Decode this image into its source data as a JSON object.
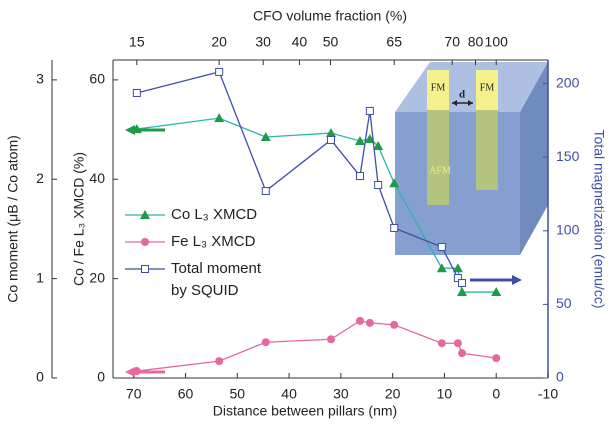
{
  "chart_data": {
    "type": "line",
    "xlabel": "Distance between pillars (nm)",
    "xlim": [
      74,
      -10
    ],
    "xticks": [
      70,
      60,
      50,
      40,
      30,
      20,
      10,
      0,
      -10
    ],
    "x2label": "CFO volume fraction (%)",
    "x2ticks": [
      {
        "value": 69.4,
        "label": "15"
      },
      {
        "value": 53.5,
        "label": "20"
      },
      {
        "value": 45,
        "label": "30"
      },
      {
        "value": 38,
        "label": "40"
      },
      {
        "value": 32,
        "label": "50"
      },
      {
        "value": 19.7,
        "label": "65"
      },
      {
        "value": 8.5,
        "label": "70"
      },
      {
        "value": 4,
        "label": "80"
      },
      {
        "value": 0,
        "label": "100"
      }
    ],
    "ylabel": "Co / Fe L₃ XMCD (%)",
    "ylim": [
      0,
      64
    ],
    "yticks": [
      0,
      20,
      40,
      60
    ],
    "y3label": "Co moment (μB / Co atom)",
    "y3lim": [
      0,
      3.2
    ],
    "y3ticks": [
      0,
      1,
      2,
      3
    ],
    "y2label": "Total magnetization (emu/cc)",
    "y2lim": [
      0,
      216
    ],
    "y2ticks": [
      0,
      50,
      100,
      150,
      200
    ],
    "y2color": "#3f4ea6",
    "legend": "upper left",
    "series": [
      {
        "name": "Co L₃ XMCD",
        "color": "#2bb5ad",
        "marker_color": "#1d9b47",
        "marker": "triangle",
        "x": [
          69.4,
          53.5,
          44.5,
          31.9,
          26.3,
          24.4,
          22.8,
          19.7,
          10.5,
          7.4,
          6.6,
          0
        ],
        "values": [
          50.1,
          52.3,
          48.5,
          49.3,
          47.7,
          48.1,
          46.7,
          39.2,
          22.1,
          22.1,
          17.3,
          17.3
        ]
      },
      {
        "name": "Fe L₃ XMCD",
        "color": "#e7679f",
        "marker_color": "#e7679f",
        "marker": "circle",
        "x": [
          69.4,
          53.5,
          44.5,
          31.9,
          26.3,
          24.4,
          19.7,
          10.5,
          7.4,
          6.6,
          0
        ],
        "values": [
          1.4,
          3.4,
          7.2,
          7.8,
          11.5,
          11.1,
          10.7,
          7.0,
          7.0,
          5.0,
          4.0
        ]
      },
      {
        "name": "Total moment by SQUID",
        "color": "#3f4ea6",
        "marker_color": "#3f4ea6",
        "marker": "square",
        "axis": "y2",
        "x": [
          69.4,
          53.5,
          44.5,
          31.9,
          26.3,
          24.4,
          22.8,
          19.7,
          10.5,
          7.4,
          6.6
        ],
        "values": [
          193.6,
          207.9,
          127.0,
          161.7,
          137.2,
          181.4,
          131.1,
          101.9,
          89.0,
          67.9,
          64.5
        ]
      }
    ],
    "inset": {
      "labels": [
        "FM",
        "FM",
        "d",
        "AFM"
      ]
    }
  }
}
